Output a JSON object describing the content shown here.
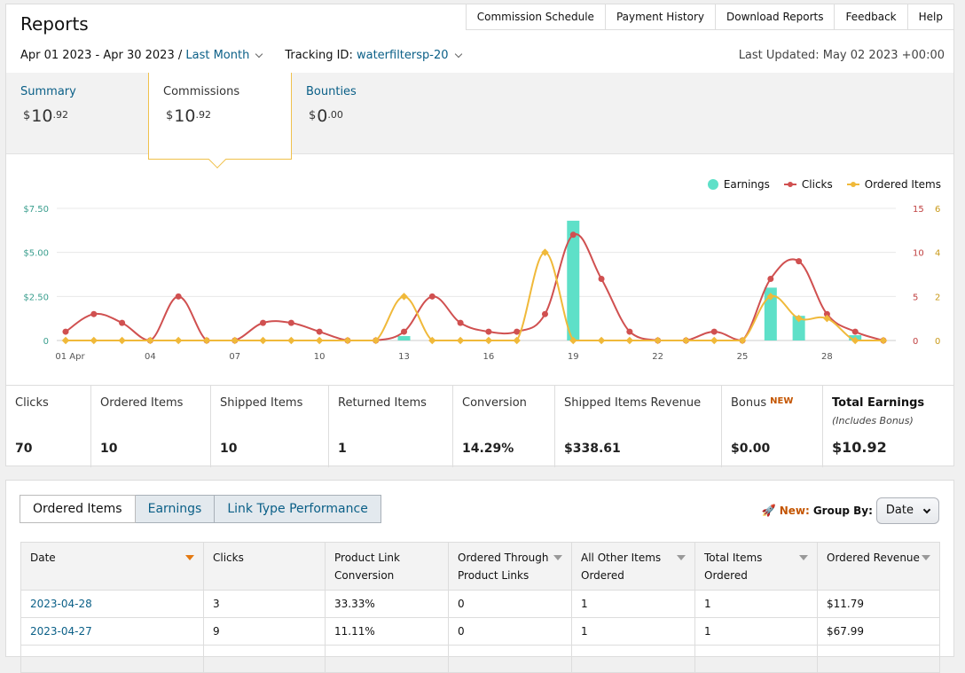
{
  "header": {
    "title": "Reports",
    "links": [
      "Commission Schedule",
      "Payment History",
      "Download Reports",
      "Feedback",
      "Help"
    ]
  },
  "filters": {
    "date_range": "Apr 01 2023 - Apr 30 2023 /",
    "period": "Last Month",
    "tracking_label": "Tracking ID:",
    "tracking_id": "waterfiltersp-20",
    "last_updated": "Last Updated: May 02 2023 +00:00"
  },
  "summary_tabs": [
    {
      "label": "Summary",
      "currency": "$",
      "whole": "10",
      "cents": ".92"
    },
    {
      "label": "Commissions",
      "currency": "$",
      "whole": "10",
      "cents": ".92"
    },
    {
      "label": "Bounties",
      "currency": "$",
      "whole": "0",
      "cents": ".00"
    }
  ],
  "colors": {
    "earnings": "#5ee0c8",
    "clicks": "#d05050",
    "ordered": "#f0b93a",
    "link": "#0a5f87",
    "left_axis": "#3a9e8e",
    "right_axis_clicks": "#c04040",
    "right_axis_ordered": "#c99a1a"
  },
  "chart_data": {
    "type": "bar",
    "legend": [
      "Earnings",
      "Clicks",
      "Ordered Items"
    ],
    "legend_position": "top-right",
    "x": [
      1,
      2,
      3,
      4,
      5,
      6,
      7,
      8,
      9,
      10,
      11,
      12,
      13,
      14,
      15,
      16,
      17,
      18,
      19,
      20,
      21,
      22,
      23,
      24,
      25,
      26,
      27,
      28,
      29,
      30
    ],
    "x_tick_labels": [
      "01 Apr",
      "04",
      "07",
      "10",
      "13",
      "16",
      "19",
      "22",
      "25",
      "28"
    ],
    "x_tick_days": [
      1,
      4,
      7,
      10,
      13,
      16,
      19,
      22,
      25,
      28
    ],
    "earnings_axis": {
      "ticks": [
        "$7.50",
        "$5.00",
        "$2.50",
        "0"
      ],
      "range": [
        0,
        7.5
      ]
    },
    "clicks_axis": {
      "ticks": [
        "15",
        "10",
        "5",
        "0"
      ],
      "range": [
        0,
        15
      ]
    },
    "ordered_axis": {
      "ticks": [
        "6",
        "4",
        "2",
        "0"
      ],
      "range": [
        0,
        6
      ]
    },
    "series": [
      {
        "name": "Earnings",
        "kind": "bar",
        "values": [
          0,
          0,
          0,
          0,
          0,
          0,
          0,
          0,
          0,
          0,
          0,
          0,
          0.25,
          0,
          0,
          0,
          0,
          0,
          6.8,
          0,
          0,
          0,
          0,
          0,
          0,
          3.0,
          1.4,
          0,
          0.3,
          0
        ]
      },
      {
        "name": "Clicks",
        "kind": "line",
        "values": [
          1,
          3,
          2,
          0,
          5,
          0,
          0,
          2,
          2,
          1,
          0,
          0,
          1,
          5,
          2,
          1,
          1,
          3,
          12,
          7,
          1,
          0,
          0,
          1,
          0,
          7,
          9,
          3,
          1,
          0
        ]
      },
      {
        "name": "Ordered Items",
        "kind": "line",
        "values": [
          0,
          0,
          0,
          0,
          0,
          0,
          0,
          0,
          0,
          0,
          0,
          0,
          2,
          0,
          0,
          0,
          0,
          4,
          0,
          0,
          0,
          0,
          0,
          0,
          0,
          2,
          1,
          1,
          0,
          0
        ]
      }
    ],
    "grid": true
  },
  "stats": [
    {
      "label": "Clicks",
      "value": "70"
    },
    {
      "label": "Ordered Items",
      "value": "10"
    },
    {
      "label": "Shipped Items",
      "value": "10"
    },
    {
      "label": "Returned Items",
      "value": "1"
    },
    {
      "label": "Conversion",
      "value": "14.29%"
    },
    {
      "label": "Shipped Items Revenue",
      "value": "$338.61"
    },
    {
      "label": "Bonus",
      "badge": "NEW",
      "value": "$0.00"
    },
    {
      "label": "Total Earnings",
      "sub": "(Includes Bonus)",
      "value": "$10.92"
    }
  ],
  "report_tabs": [
    "Ordered Items",
    "Earnings",
    "Link Type Performance"
  ],
  "group_by": {
    "new_label": "New:",
    "label": "Group By:",
    "value": "Date"
  },
  "table": {
    "columns": [
      [
        "Date"
      ],
      [
        "Clicks"
      ],
      [
        "Product Link",
        "Conversion"
      ],
      [
        "Ordered Through",
        "Product Links"
      ],
      [
        "All Other Items",
        "Ordered"
      ],
      [
        "Total Items",
        "Ordered"
      ],
      [
        "Ordered Revenue"
      ]
    ],
    "rows": [
      [
        "2023-04-28",
        "3",
        "33.33%",
        "0",
        "1",
        "1",
        "$11.79"
      ],
      [
        "2023-04-27",
        "9",
        "11.11%",
        "0",
        "1",
        "1",
        "$67.99"
      ]
    ]
  }
}
